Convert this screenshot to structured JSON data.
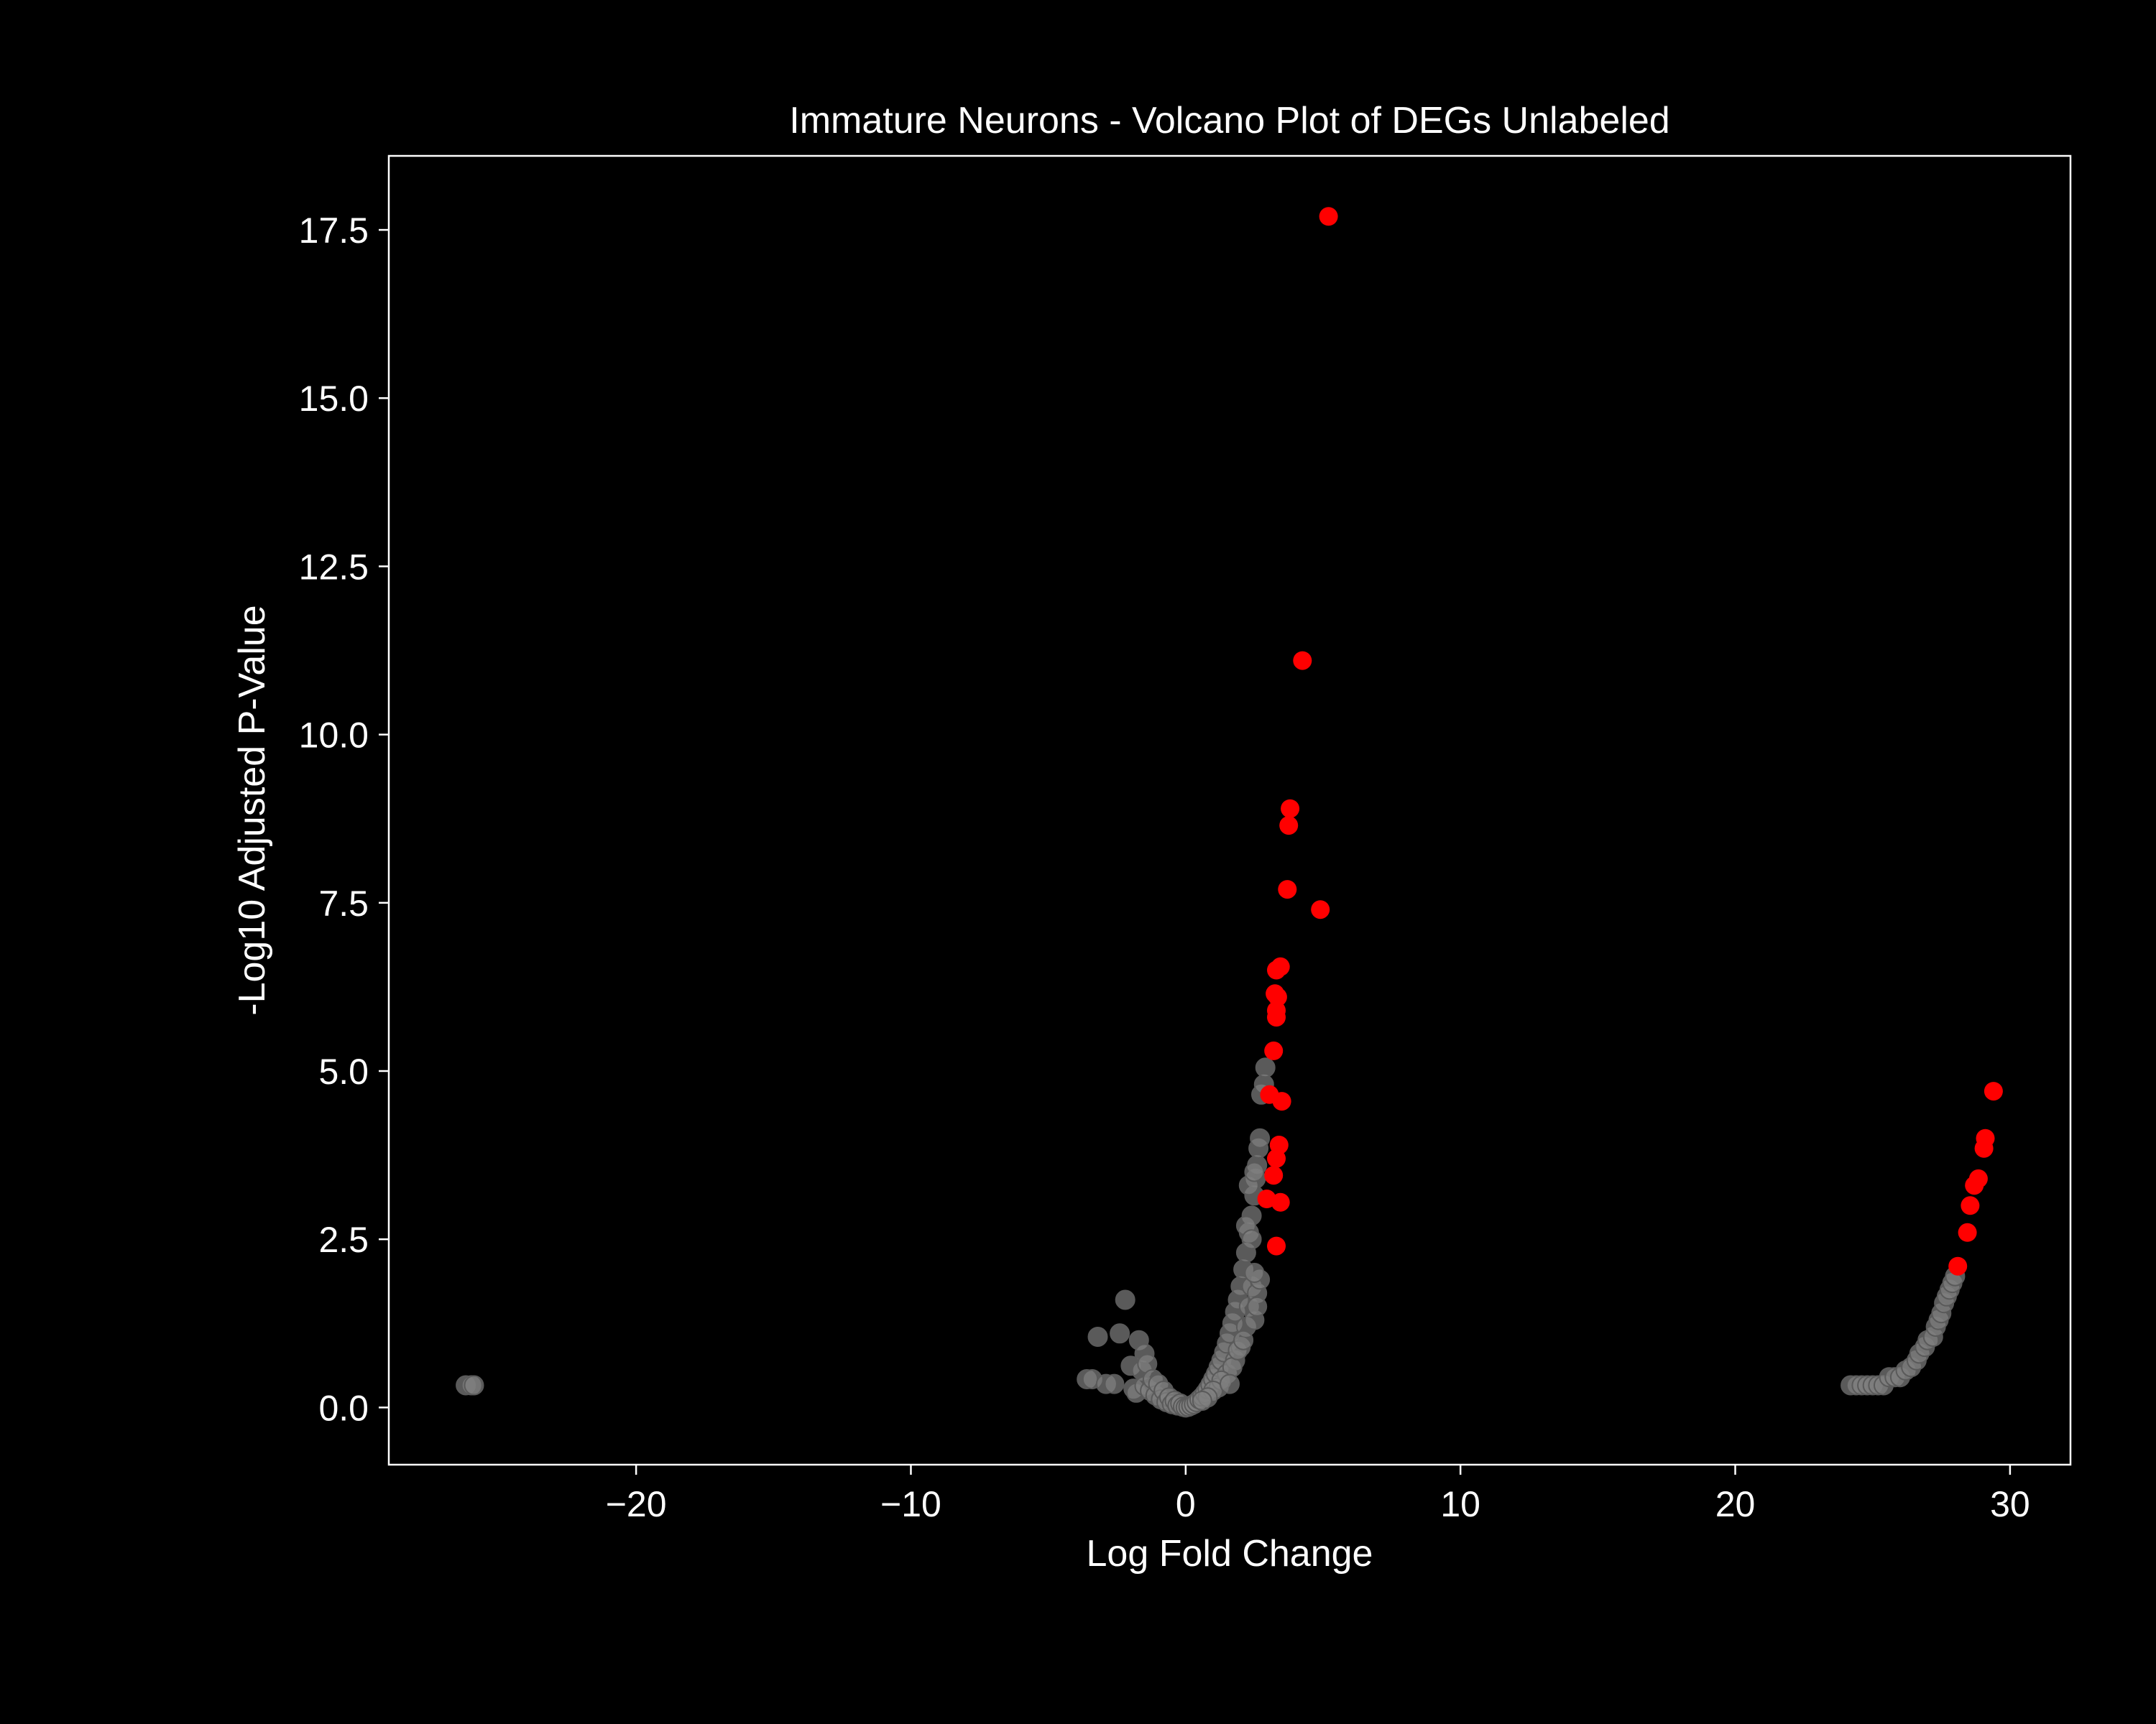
{
  "chart_data": {
    "type": "scatter",
    "title": "Immature Neurons - Volcano Plot of DEGs Unlabeled",
    "xlabel": "Log Fold Change",
    "ylabel": "-Log10 Adjusted P-Value",
    "xlim": [
      -29,
      32.2
    ],
    "ylim": [
      -0.85,
      18.6
    ],
    "xticks": [
      -20,
      -10,
      0,
      10,
      20,
      30
    ],
    "xtick_labels": [
      "−20",
      "−10",
      "0",
      "10",
      "20",
      "30"
    ],
    "yticks": [
      0,
      2.5,
      5,
      7.5,
      10,
      12.5,
      15,
      17.5
    ],
    "ytick_labels": [
      "0.0",
      "2.5",
      "5.0",
      "7.5",
      "10.0",
      "12.5",
      "15.0",
      "17.5"
    ],
    "grid": false,
    "colors": {
      "background": "#000000",
      "axes": "#ffffff",
      "not_significant": "#808080",
      "significant": "#ff0000"
    },
    "series": [
      {
        "color": "#808080",
        "points": [
          [
            -26.2,
            0.33
          ],
          [
            -26.0,
            0.33
          ],
          [
            -25.9,
            0.33
          ],
          [
            -3.6,
            0.42
          ],
          [
            -3.4,
            0.42
          ],
          [
            -3.2,
            1.05
          ],
          [
            -2.9,
            0.35
          ],
          [
            -2.6,
            0.35
          ],
          [
            -2.4,
            1.1
          ],
          [
            -2.2,
            1.6
          ],
          [
            -2.0,
            0.62
          ],
          [
            -1.9,
            0.28
          ],
          [
            -1.8,
            0.22
          ],
          [
            -1.7,
            1.0
          ],
          [
            -1.6,
            0.55
          ],
          [
            -1.5,
            0.32
          ],
          [
            -1.5,
            0.8
          ],
          [
            -1.4,
            0.65
          ],
          [
            -1.3,
            0.25
          ],
          [
            -1.2,
            0.42
          ],
          [
            -1.1,
            0.18
          ],
          [
            -1.0,
            0.35
          ],
          [
            -0.9,
            0.12
          ],
          [
            -0.8,
            0.25
          ],
          [
            -0.7,
            0.08
          ],
          [
            -0.6,
            0.15
          ],
          [
            -0.5,
            0.05
          ],
          [
            -0.4,
            0.1
          ],
          [
            -0.3,
            0.03
          ],
          [
            -0.2,
            0.06
          ],
          [
            -0.1,
            0.01
          ],
          [
            0.0,
            0.0
          ],
          [
            0.1,
            0.01
          ],
          [
            0.2,
            0.03
          ],
          [
            0.3,
            0.05
          ],
          [
            0.4,
            0.08
          ],
          [
            0.5,
            0.12
          ],
          [
            0.6,
            0.16
          ],
          [
            0.7,
            0.21
          ],
          [
            0.8,
            0.27
          ],
          [
            0.9,
            0.34
          ],
          [
            1.0,
            0.42
          ],
          [
            1.1,
            0.5
          ],
          [
            1.2,
            0.6
          ],
          [
            1.3,
            0.7
          ],
          [
            1.4,
            0.82
          ],
          [
            1.5,
            0.95
          ],
          [
            1.6,
            1.1
          ],
          [
            1.7,
            1.25
          ],
          [
            1.8,
            1.42
          ],
          [
            1.9,
            1.6
          ],
          [
            2.0,
            1.8
          ],
          [
            2.1,
            2.05
          ],
          [
            2.2,
            2.3
          ],
          [
            2.3,
            2.6
          ],
          [
            2.4,
            2.85
          ],
          [
            2.5,
            3.15
          ],
          [
            2.55,
            3.4
          ],
          [
            2.6,
            3.6
          ],
          [
            2.65,
            3.85
          ],
          [
            2.7,
            4.0
          ],
          [
            2.75,
            4.65
          ],
          [
            2.85,
            4.8
          ],
          [
            2.9,
            5.05
          ],
          [
            1.2,
            0.3
          ],
          [
            1.5,
            0.5
          ],
          [
            1.8,
            0.7
          ],
          [
            2.0,
            0.9
          ],
          [
            2.2,
            1.2
          ],
          [
            2.3,
            1.5
          ],
          [
            2.4,
            1.8
          ],
          [
            2.6,
            1.7
          ],
          [
            2.7,
            1.9
          ],
          [
            2.5,
            2.0
          ],
          [
            2.2,
            2.7
          ],
          [
            2.3,
            3.3
          ],
          [
            2.5,
            3.5
          ],
          [
            2.4,
            2.5
          ],
          [
            1.7,
            0.6
          ],
          [
            1.9,
            0.85
          ],
          [
            2.1,
            1.0
          ],
          [
            2.5,
            1.3
          ],
          [
            2.6,
            1.5
          ],
          [
            1.3,
            0.4
          ],
          [
            1.0,
            0.25
          ],
          [
            0.8,
            0.15
          ],
          [
            0.6,
            0.1
          ],
          [
            1.6,
            0.35
          ],
          [
            24.2,
            0.33
          ],
          [
            24.4,
            0.33
          ],
          [
            24.6,
            0.33
          ],
          [
            24.8,
            0.33
          ],
          [
            25.0,
            0.33
          ],
          [
            25.2,
            0.33
          ],
          [
            25.4,
            0.33
          ],
          [
            25.6,
            0.45
          ],
          [
            25.8,
            0.45
          ],
          [
            26.0,
            0.45
          ],
          [
            26.2,
            0.55
          ],
          [
            26.4,
            0.6
          ],
          [
            26.6,
            0.7
          ],
          [
            26.7,
            0.8
          ],
          [
            26.9,
            0.9
          ],
          [
            27.0,
            1.0
          ],
          [
            27.2,
            1.05
          ],
          [
            27.3,
            1.2
          ],
          [
            27.4,
            1.3
          ],
          [
            27.5,
            1.4
          ],
          [
            27.6,
            1.55
          ],
          [
            27.7,
            1.65
          ],
          [
            27.8,
            1.75
          ],
          [
            27.9,
            1.85
          ],
          [
            28.0,
            1.95
          ]
        ]
      },
      {
        "color": "#ff0000",
        "points": [
          [
            5.2,
            17.7
          ],
          [
            4.25,
            11.1
          ],
          [
            3.8,
            8.9
          ],
          [
            3.75,
            8.65
          ],
          [
            3.7,
            7.7
          ],
          [
            4.9,
            7.4
          ],
          [
            3.45,
            6.55
          ],
          [
            3.3,
            6.5
          ],
          [
            3.25,
            6.15
          ],
          [
            3.35,
            6.1
          ],
          [
            3.3,
            5.9
          ],
          [
            3.3,
            5.8
          ],
          [
            3.2,
            5.3
          ],
          [
            3.05,
            4.65
          ],
          [
            3.5,
            4.55
          ],
          [
            3.4,
            3.9
          ],
          [
            3.3,
            3.7
          ],
          [
            3.2,
            3.45
          ],
          [
            2.95,
            3.1
          ],
          [
            3.45,
            3.05
          ],
          [
            3.3,
            2.4
          ],
          [
            29.4,
            4.7
          ],
          [
            29.1,
            4.0
          ],
          [
            29.05,
            3.85
          ],
          [
            28.85,
            3.4
          ],
          [
            28.7,
            3.3
          ],
          [
            28.55,
            3.0
          ],
          [
            28.45,
            2.6
          ],
          [
            28.1,
            2.1
          ]
        ]
      }
    ]
  }
}
